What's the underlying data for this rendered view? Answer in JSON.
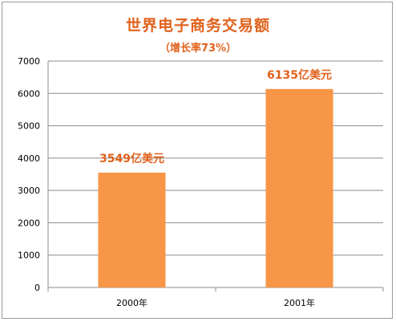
{
  "colors": {
    "title": "#e0621d",
    "bar": "#f79646",
    "grid": "#8c8c8c",
    "axis": "#8c8c8c",
    "frame": "#9a9a9a"
  },
  "chart_data": {
    "type": "bar",
    "title": "世界电子商务交易额",
    "subtitle": "（增长率73%）",
    "categories": [
      "2000年",
      "2001年"
    ],
    "values": [
      3549,
      6135
    ],
    "data_labels": [
      "3549亿美元",
      "6135亿美元"
    ],
    "yticks": [
      "0",
      "1000",
      "2000",
      "3000",
      "4000",
      "5000",
      "6000",
      "7000"
    ],
    "ylim": [
      0,
      7000
    ],
    "xlabel": "",
    "ylabel": "",
    "grid": true,
    "legend": "none"
  }
}
